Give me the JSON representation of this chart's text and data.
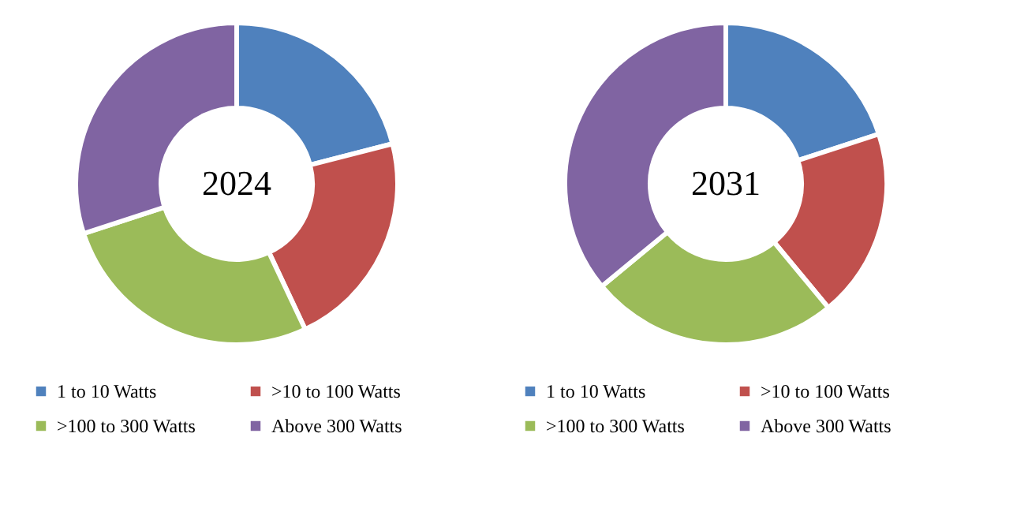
{
  "chart_data": [
    {
      "type": "donut",
      "title": "2024",
      "categories": [
        "1 to 10 Watts",
        ">10 to 100 Watts",
        ">100 to 300 Watts",
        "Above 300 Watts"
      ],
      "values": [
        21,
        22,
        27,
        30
      ],
      "colors": [
        "#4f81bd",
        "#c0504d",
        "#9bbb59",
        "#8064a2"
      ],
      "legend": "bottom"
    },
    {
      "type": "donut",
      "title": "2031",
      "categories": [
        "1 to 10 Watts",
        ">10 to 100 Watts",
        ">100 to 300 Watts",
        "Above 300 Watts"
      ],
      "values": [
        20,
        19,
        25,
        36
      ],
      "colors": [
        "#4f81bd",
        "#c0504d",
        "#9bbb59",
        "#8064a2"
      ],
      "legend": "bottom"
    }
  ]
}
